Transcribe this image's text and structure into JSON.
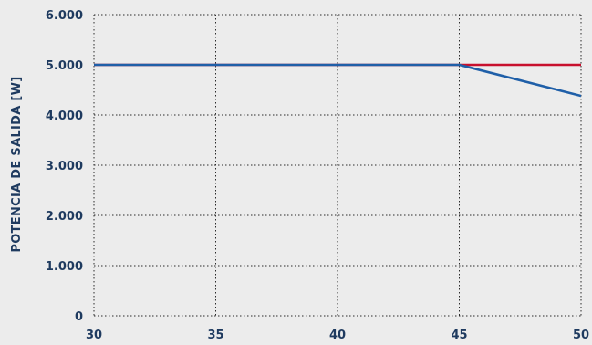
{
  "chart_data": {
    "type": "line",
    "ylabel": "POTENCIA DE SALIDA [W]",
    "xlabel": "",
    "xlim": [
      30,
      50
    ],
    "ylim": [
      0,
      6000
    ],
    "x_ticks": [
      30,
      35,
      40,
      45,
      50
    ],
    "x_tick_labels": [
      "30",
      "35",
      "40",
      "45",
      "50"
    ],
    "y_ticks": [
      0,
      1000,
      2000,
      3000,
      4000,
      5000,
      6000
    ],
    "y_tick_labels": [
      "0",
      "1.000",
      "2.000",
      "3.000",
      "4.000",
      "5.000",
      "6.000"
    ],
    "grid": true,
    "series": [
      {
        "color": "#c8102e",
        "x": [
          30,
          45,
          50
        ],
        "y": [
          5000,
          5000,
          5000
        ]
      },
      {
        "color": "#1f5fa8",
        "x": [
          30,
          45,
          50
        ],
        "y": [
          5000,
          5000,
          4380
        ]
      }
    ]
  }
}
